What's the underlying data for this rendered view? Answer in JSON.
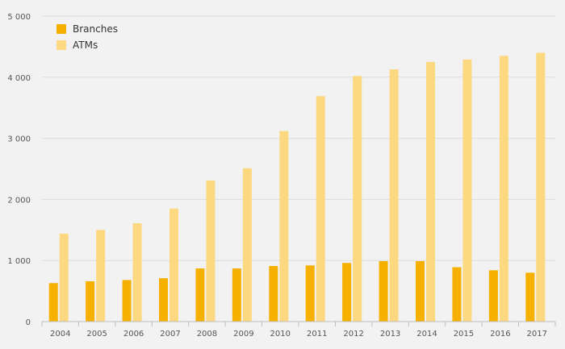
{
  "chart_data": {
    "type": "bar",
    "title": "",
    "xlabel": "",
    "ylabel": "",
    "ylim": [
      0,
      5000
    ],
    "yticks": [
      0,
      1000,
      2000,
      3000,
      4000,
      5000
    ],
    "ytick_labels": [
      "0",
      "1 000",
      "2 000",
      "3 000",
      "4 000",
      "5 000"
    ],
    "categories": [
      "2004",
      "2005",
      "2006",
      "2007",
      "2008",
      "2009",
      "2010",
      "2011",
      "2012",
      "2013",
      "2014",
      "2015",
      "2016",
      "2017"
    ],
    "series": [
      {
        "name": "Branches",
        "color": "#f5b000",
        "values": [
          630,
          660,
          680,
          710,
          870,
          870,
          910,
          920,
          960,
          990,
          990,
          890,
          840,
          800
        ]
      },
      {
        "name": "ATMs",
        "color": "#fcd980",
        "values": [
          1440,
          1500,
          1610,
          1850,
          2310,
          2510,
          3120,
          3690,
          4020,
          4130,
          4250,
          4290,
          4350,
          4400
        ]
      }
    ],
    "grid": true,
    "legend_position": "top-left"
  }
}
